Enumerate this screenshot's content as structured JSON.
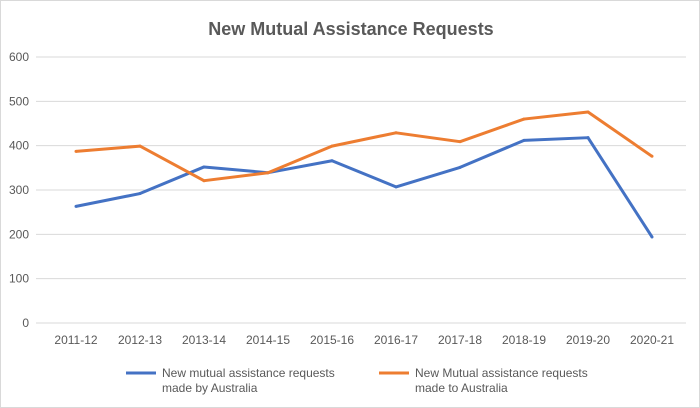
{
  "chart_data": {
    "type": "line",
    "title": "New Mutual Assistance Requests",
    "xlabel": "",
    "ylabel": "",
    "categories": [
      "2011-12",
      "2012-13",
      "2013-14",
      "2014-15",
      "2015-16",
      "2016-17",
      "2017-18",
      "2018-19",
      "2019-20",
      "2020-21"
    ],
    "ylim": [
      0,
      600
    ],
    "yticks": [
      0,
      100,
      200,
      300,
      400,
      500,
      600
    ],
    "grid": true,
    "legend_position": "bottom",
    "series": [
      {
        "name": "New mutual assistance requests made by Australia",
        "legend_lines": [
          "New mutual assistance requests",
          "made by Australia"
        ],
        "color": "#4472c4",
        "values": [
          263,
          292,
          352,
          339,
          366,
          307,
          351,
          412,
          418,
          194
        ]
      },
      {
        "name": "New Mutual assistance requests made to Australia",
        "legend_lines": [
          "New Mutual assistance requests",
          "made to Australia"
        ],
        "color": "#ed7d31",
        "values": [
          387,
          399,
          321,
          339,
          399,
          429,
          409,
          460,
          476,
          376
        ]
      }
    ]
  }
}
